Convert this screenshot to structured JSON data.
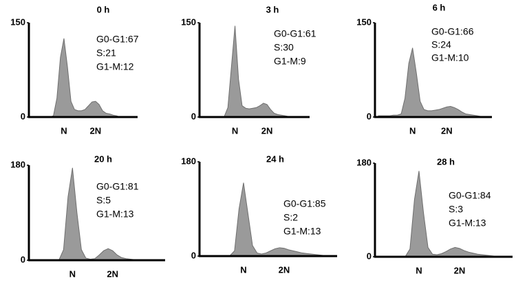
{
  "chart_data": [
    {
      "type": "area",
      "title": "0 h",
      "annotations": [
        "G0-G1:67",
        "S:21",
        "G1-M:12"
      ],
      "categories": [
        null,
        null,
        null,
        null,
        null,
        null,
        null,
        null,
        null,
        "N",
        null,
        null,
        null,
        null,
        null,
        null,
        null,
        null,
        "2N",
        null,
        null,
        null,
        null,
        null,
        null,
        null,
        null,
        null,
        null,
        null
      ],
      "values": [
        0,
        0,
        0,
        0,
        0,
        0,
        2,
        30,
        95,
        125,
        80,
        25,
        12,
        10,
        10,
        12,
        18,
        24,
        25,
        20,
        10,
        6,
        5,
        3,
        2,
        0,
        0,
        0,
        0,
        0
      ],
      "ylim": [
        0,
        150
      ],
      "yticks": [
        0,
        150
      ],
      "color": "#9a9a9a"
    },
    {
      "type": "area",
      "title": "3 h",
      "annotations": [
        "G0-G1:61",
        "S:30",
        "G1-M:9"
      ],
      "categories": [
        null,
        null,
        null,
        null,
        null,
        null,
        null,
        null,
        null,
        "N",
        null,
        null,
        null,
        null,
        null,
        null,
        null,
        null,
        "2N",
        null,
        null,
        null,
        null,
        null,
        null,
        null,
        null,
        null,
        null,
        null
      ],
      "values": [
        0,
        0,
        0,
        0,
        0,
        0,
        1,
        15,
        80,
        145,
        60,
        18,
        14,
        13,
        14,
        15,
        18,
        22,
        20,
        12,
        6,
        4,
        3,
        2,
        1,
        1,
        0,
        0,
        0,
        0
      ],
      "ylim": [
        0,
        150
      ],
      "yticks": [
        0,
        150
      ],
      "color": "#9a9a9a"
    },
    {
      "type": "area",
      "title": "6 h",
      "annotations": [
        "G0-G1:66",
        "S:24",
        "G1-M:10"
      ],
      "categories": [
        null,
        null,
        null,
        null,
        null,
        null,
        null,
        null,
        null,
        "N",
        null,
        null,
        null,
        null,
        null,
        null,
        null,
        null,
        "2N",
        null,
        null,
        null,
        null,
        null,
        null,
        null,
        null,
        null,
        null,
        null
      ],
      "values": [
        2,
        2,
        2,
        2,
        3,
        3,
        5,
        30,
        85,
        110,
        70,
        25,
        12,
        10,
        10,
        11,
        12,
        14,
        16,
        17,
        15,
        12,
        8,
        5,
        4,
        3,
        2,
        1,
        1,
        0
      ],
      "ylim": [
        0,
        150
      ],
      "yticks": [
        0,
        150
      ],
      "color": "#9a9a9a"
    },
    {
      "type": "area",
      "title": "20 h",
      "annotations": [
        "G0-G1:81",
        "S:5",
        "G1-M:13"
      ],
      "categories": [
        null,
        null,
        null,
        null,
        null,
        null,
        null,
        null,
        null,
        "N",
        null,
        null,
        null,
        null,
        null,
        null,
        null,
        null,
        "2N",
        null,
        null,
        null,
        null,
        null,
        null,
        null,
        null,
        null,
        null,
        null
      ],
      "values": [
        0,
        0,
        0,
        0,
        0,
        0,
        1,
        20,
        120,
        175,
        90,
        20,
        4,
        2,
        3,
        10,
        18,
        22,
        18,
        10,
        5,
        3,
        2,
        1,
        1,
        1,
        0,
        0,
        0,
        0
      ],
      "ylim": [
        0,
        180
      ],
      "yticks": [
        0,
        180
      ],
      "color": "#9a9a9a"
    },
    {
      "type": "area",
      "title": "24 h",
      "annotations": [
        "G0-G1:85",
        "S:2",
        "G1-M:13"
      ],
      "categories": [
        null,
        null,
        null,
        null,
        null,
        null,
        null,
        null,
        null,
        "N",
        null,
        null,
        null,
        null,
        null,
        null,
        null,
        null,
        "2N",
        null,
        null,
        null,
        null,
        null,
        null,
        null,
        null,
        null,
        null,
        null
      ],
      "values": [
        0,
        0,
        0,
        0,
        0,
        0,
        1,
        10,
        90,
        140,
        80,
        20,
        6,
        4,
        6,
        10,
        14,
        16,
        15,
        12,
        10,
        8,
        6,
        5,
        4,
        3,
        2,
        1,
        1,
        0
      ],
      "ylim": [
        0,
        180
      ],
      "yticks": [
        0,
        180
      ],
      "color": "#9a9a9a"
    },
    {
      "type": "area",
      "title": "28 h",
      "annotations": [
        "G0-G1:84",
        "S:3",
        "G1-M:13"
      ],
      "categories": [
        null,
        null,
        null,
        null,
        null,
        null,
        null,
        null,
        null,
        "N",
        null,
        null,
        null,
        null,
        null,
        null,
        null,
        null,
        "2N",
        null,
        null,
        null,
        null,
        null,
        null,
        null,
        null,
        null,
        null,
        null
      ],
      "values": [
        0,
        0,
        0,
        0,
        0,
        0,
        1,
        15,
        110,
        165,
        85,
        18,
        5,
        4,
        6,
        10,
        15,
        18,
        16,
        12,
        9,
        7,
        5,
        4,
        3,
        2,
        1,
        1,
        0,
        0
      ],
      "ylim": [
        0,
        180
      ],
      "yticks": [
        0,
        180
      ],
      "color": "#9a9a9a"
    }
  ]
}
